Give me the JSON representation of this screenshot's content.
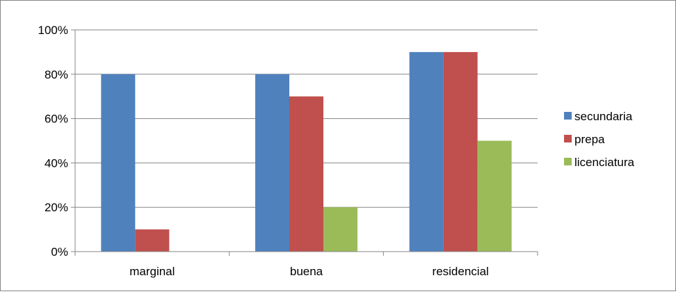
{
  "chart_data": {
    "type": "bar",
    "categories": [
      "marginal",
      "buena",
      "residencial"
    ],
    "series": [
      {
        "name": "secundaria",
        "values": [
          80,
          80,
          90
        ]
      },
      {
        "name": "prepa",
        "values": [
          10,
          70,
          90
        ]
      },
      {
        "name": "licenciatura",
        "values": [
          0,
          20,
          50
        ]
      }
    ],
    "colors": [
      "#4F81BD",
      "#C0504D",
      "#9BBB59"
    ],
    "y_ticks": [
      "0%",
      "20%",
      "40%",
      "60%",
      "80%",
      "100%"
    ],
    "ylim": [
      0,
      100
    ],
    "grid": true,
    "legend_position": "right"
  }
}
